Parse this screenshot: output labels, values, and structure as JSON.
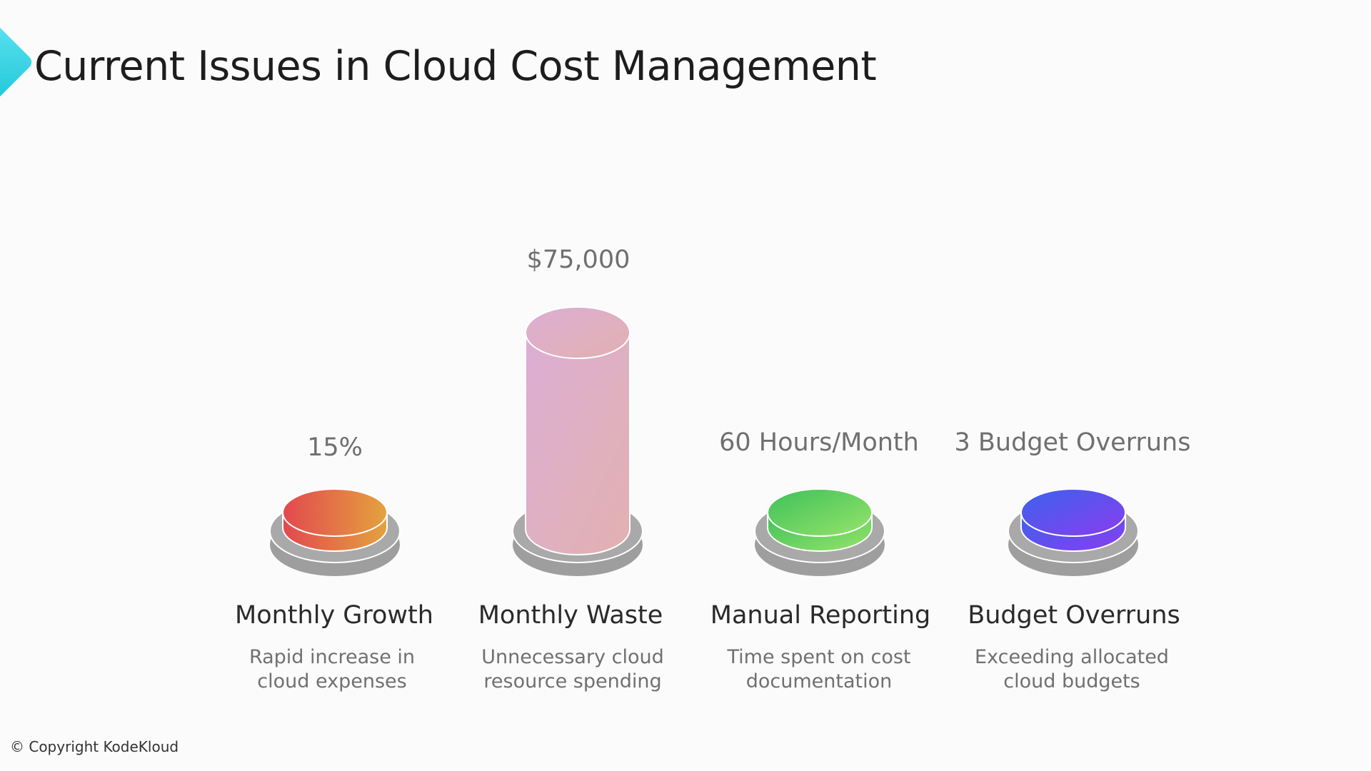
{
  "title": "Current Issues in Cloud Cost Management",
  "copyright": "© Copyright KodeKloud",
  "items": [
    {
      "value": "15%",
      "title": "Monthly Growth",
      "desc_line1": "Rapid increase in",
      "desc_line2": "cloud expenses",
      "colors": [
        "#e3484f",
        "#e4a23e"
      ],
      "level": "low"
    },
    {
      "value": "$75,000",
      "title": "Monthly Waste",
      "desc_line1": "Unnecessary cloud",
      "desc_line2": "resource spending",
      "colors": [
        "#dcaed4",
        "#e2b1b0"
      ],
      "level": "high"
    },
    {
      "value": "60 Hours/Month",
      "title": "Manual Reporting",
      "desc_line1": "Time spent on cost",
      "desc_line2": "documentation",
      "colors": [
        "#3ec05a",
        "#96e46a"
      ],
      "level": "low"
    },
    {
      "value": "3 Budget Overruns",
      "title": "Budget Overruns",
      "desc_line1": "Exceeding allocated",
      "desc_line2": "cloud budgets",
      "colors": [
        "#3b63ec",
        "#8a3cf0"
      ],
      "level": "low"
    }
  ]
}
